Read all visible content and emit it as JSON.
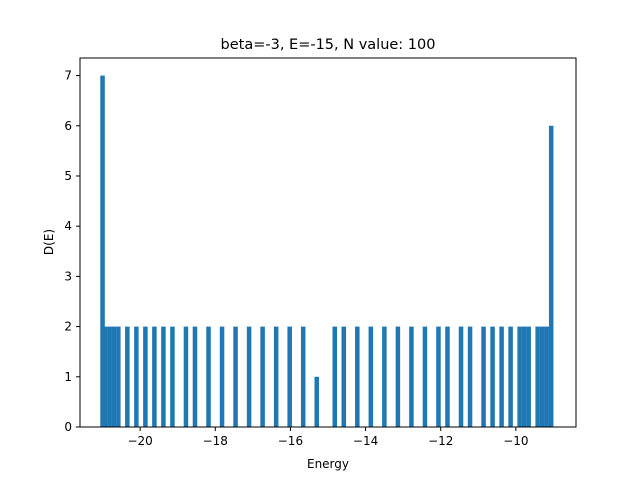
{
  "chart_data": {
    "type": "bar",
    "title": "beta=-3, E=-15, N value: 100",
    "xlabel": "Energy",
    "ylabel": "D(E)",
    "xlim": [
      -21.6,
      -8.4
    ],
    "ylim": [
      0,
      7.35
    ],
    "bar_width": 0.12,
    "color": "#1f77b4",
    "grid": false,
    "legend": "none",
    "xticks": [
      -20,
      -18,
      -16,
      -14,
      -12,
      -10
    ],
    "xtick_labels": [
      "−20",
      "−18",
      "−16",
      "−14",
      "−12",
      "−10"
    ],
    "yticks": [
      0,
      1,
      2,
      3,
      4,
      5,
      6,
      7
    ],
    "ytick_labels": [
      "0",
      "1",
      "2",
      "3",
      "4",
      "5",
      "6",
      "7"
    ],
    "series": [
      {
        "x": [
          -21.0,
          -20.94,
          -20.82,
          -20.7,
          -20.58,
          -20.34,
          -20.1,
          -19.86,
          -19.62,
          -19.38,
          -19.14,
          -18.78,
          -18.54,
          -18.18,
          -17.82,
          -17.46,
          -17.1,
          -16.74,
          -16.38,
          -16.02,
          -15.66,
          -15.3,
          -14.82,
          -14.58,
          -14.22,
          -13.86,
          -13.5,
          -13.14,
          -12.78,
          -12.42,
          -12.06,
          -11.82,
          -11.46,
          -11.22,
          -10.86,
          -10.62,
          -10.38,
          -10.14,
          -9.9,
          -9.78,
          -9.66,
          -9.42,
          -9.3,
          -9.18,
          -9.06
        ],
        "values": [
          7,
          2,
          2,
          2,
          2,
          2,
          2,
          2,
          2,
          2,
          2,
          2,
          2,
          2,
          2,
          2,
          2,
          2,
          2,
          2,
          2,
          1,
          2,
          2,
          2,
          2,
          2,
          2,
          2,
          2,
          2,
          2,
          2,
          2,
          2,
          2,
          2,
          2,
          2,
          2,
          2,
          2,
          2,
          2,
          6
        ]
      }
    ]
  }
}
